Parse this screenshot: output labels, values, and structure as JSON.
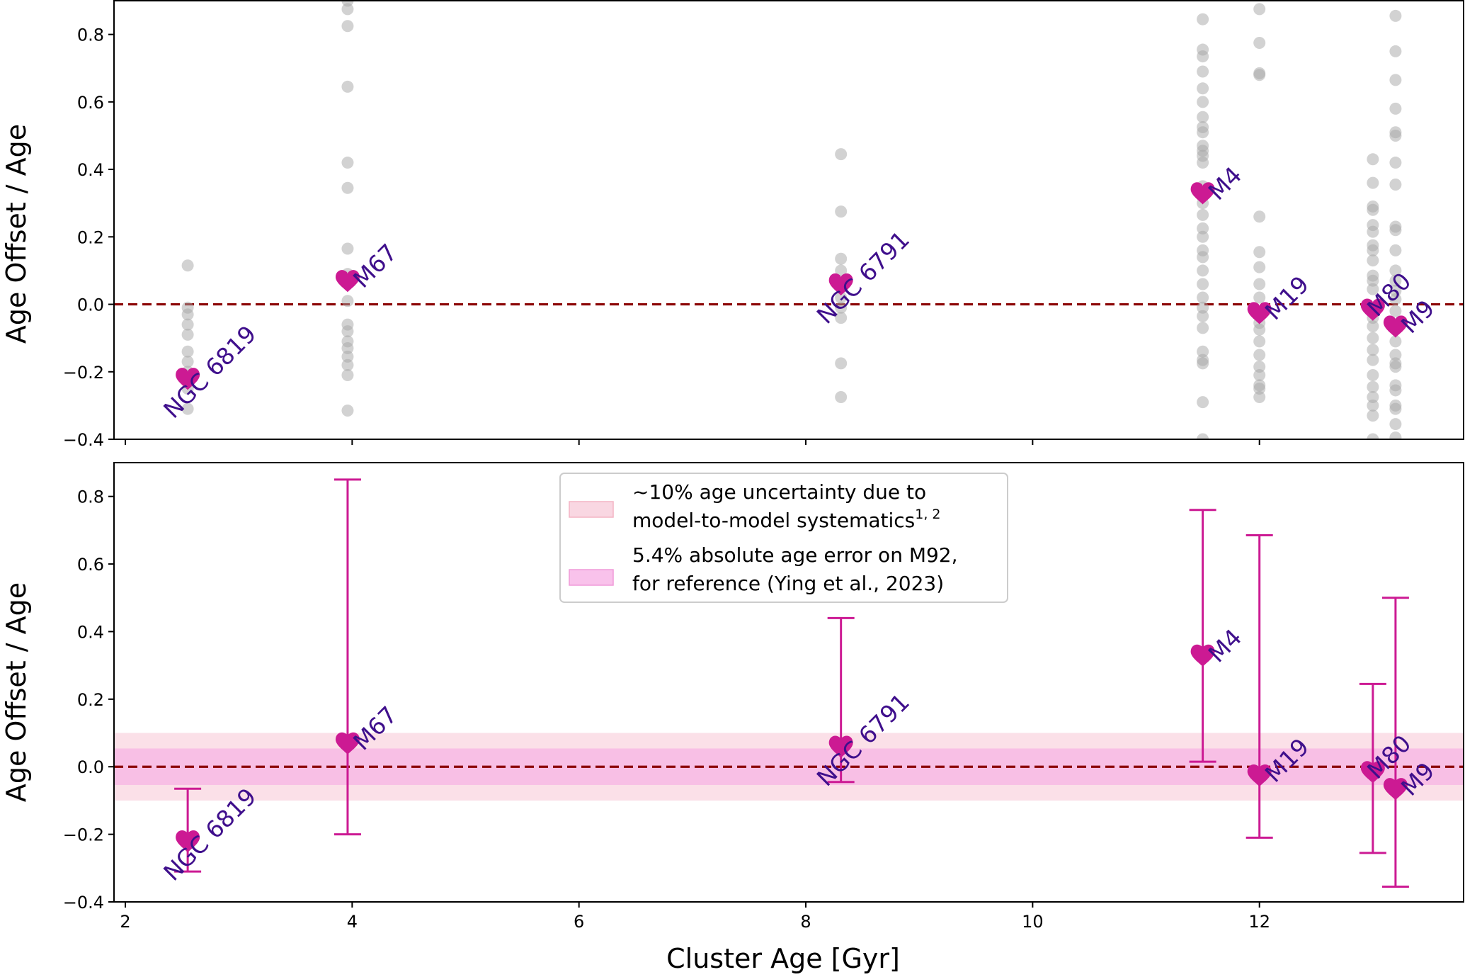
{
  "chart_data": [
    {
      "type": "scatter",
      "panel": "top",
      "xlabel": "",
      "ylabel": "Age Offset / Age",
      "xlim": [
        1.9,
        13.8
      ],
      "ylim": [
        -0.4,
        0.9
      ],
      "xticks": [
        2,
        4,
        6,
        8,
        10,
        12
      ],
      "yticks": [
        "−0.4",
        "−0.2",
        "0.0",
        "0.2",
        "0.4",
        "0.6",
        "0.8"
      ],
      "ytick_values": [
        -0.4,
        -0.2,
        0.0,
        0.2,
        0.4,
        0.6,
        0.8
      ],
      "reference_line_y": 0.0,
      "clusters": [
        {
          "name": "NGC 6819",
          "age": 2.55,
          "offset": -0.22
        },
        {
          "name": "M67",
          "age": 3.96,
          "offset": 0.07
        },
        {
          "name": "NGC 6791",
          "age": 8.31,
          "offset": 0.06
        },
        {
          "name": "M4",
          "age": 11.5,
          "offset": 0.33
        },
        {
          "name": "M19",
          "age": 12.0,
          "offset": -0.025
        },
        {
          "name": "M80",
          "age": 13.0,
          "offset": -0.015
        },
        {
          "name": "M9",
          "age": 13.2,
          "offset": -0.065
        }
      ],
      "individual_points": [
        {
          "age": 2.55,
          "values": [
            0.115,
            -0.01,
            -0.03,
            -0.06,
            -0.09,
            -0.14,
            -0.17,
            -0.2,
            -0.25,
            -0.31
          ]
        },
        {
          "age": 3.96,
          "values": [
            0.9,
            0.875,
            0.825,
            0.645,
            0.42,
            0.345,
            0.165,
            0.09,
            0.01,
            -0.06,
            -0.08,
            -0.11,
            -0.13,
            -0.155,
            -0.18,
            -0.21,
            -0.315
          ]
        },
        {
          "age": 8.31,
          "values": [
            0.445,
            0.275,
            0.135,
            0.1,
            0.05,
            0.02,
            -0.01,
            -0.04,
            -0.175,
            -0.275
          ]
        },
        {
          "age": 11.5,
          "values": [
            0.845,
            0.755,
            0.735,
            0.69,
            0.64,
            0.6,
            0.555,
            0.525,
            0.51,
            0.47,
            0.455,
            0.44,
            0.42,
            0.35,
            0.3,
            0.265,
            0.225,
            0.2,
            0.16,
            0.14,
            0.1,
            0.06,
            0.02,
            -0.01,
            -0.035,
            -0.07,
            -0.14,
            -0.165,
            -0.175,
            -0.29,
            -0.4
          ]
        },
        {
          "age": 12.0,
          "values": [
            0.875,
            0.775,
            0.685,
            0.68,
            0.26,
            0.155,
            0.11,
            0.06,
            0.02,
            -0.055,
            -0.075,
            -0.11,
            -0.15,
            -0.185,
            -0.21,
            -0.24,
            -0.25,
            -0.275
          ]
        },
        {
          "age": 13.0,
          "values": [
            0.43,
            0.36,
            0.29,
            0.28,
            0.235,
            0.215,
            0.175,
            0.16,
            0.13,
            0.085,
            0.07,
            0.045,
            -0.01,
            -0.04,
            -0.065,
            -0.1,
            -0.135,
            -0.165,
            -0.21,
            -0.245,
            -0.275,
            -0.3,
            -0.33,
            -0.4
          ]
        },
        {
          "age": 13.2,
          "values": [
            0.855,
            0.75,
            0.665,
            0.58,
            0.51,
            0.5,
            0.42,
            0.355,
            0.23,
            0.22,
            0.16,
            0.1,
            0.07,
            0.04,
            0.015,
            -0.02,
            -0.06,
            -0.11,
            -0.15,
            -0.175,
            -0.185,
            -0.24,
            -0.255,
            -0.3,
            -0.31,
            -0.355,
            -0.395
          ]
        }
      ]
    },
    {
      "type": "scatter",
      "panel": "bottom",
      "xlabel": "Cluster Age [Gyr]",
      "ylabel": "Age Offset / Age",
      "xlim": [
        1.9,
        13.8
      ],
      "ylim": [
        -0.4,
        0.9
      ],
      "xticks": [
        2,
        4,
        6,
        8,
        10,
        12
      ],
      "yticks": [
        "−0.4",
        "−0.2",
        "0.0",
        "0.2",
        "0.4",
        "0.6",
        "0.8"
      ],
      "ytick_values": [
        -0.4,
        -0.2,
        0.0,
        0.2,
        0.4,
        0.6,
        0.8
      ],
      "reference_line_y": 0.0,
      "bands": [
        {
          "label_line1": "~10% age uncertainty due to",
          "label_line2": "model-to-model systematics",
          "label_sup": "1, 2",
          "ymin": -0.1,
          "ymax": 0.1,
          "color": "#f7c6d6"
        },
        {
          "label_line1": "5.4% absolute age error on M92,",
          "label_line2": "for reference (Ying et al., 2023)",
          "label_sup": "",
          "ymin": -0.054,
          "ymax": 0.054,
          "color": "#f7a8e2"
        }
      ],
      "legend_position": "top-center",
      "clusters": [
        {
          "name": "NGC 6819",
          "age": 2.55,
          "offset": -0.22,
          "err_low": -0.31,
          "err_high": -0.065
        },
        {
          "name": "M67",
          "age": 3.96,
          "offset": 0.07,
          "err_low": -0.2,
          "err_high": 0.85
        },
        {
          "name": "NGC 6791",
          "age": 8.31,
          "offset": 0.06,
          "err_low": -0.045,
          "err_high": 0.44
        },
        {
          "name": "M4",
          "age": 11.5,
          "offset": 0.33,
          "err_low": 0.015,
          "err_high": 0.76
        },
        {
          "name": "M19",
          "age": 12.0,
          "offset": -0.025,
          "err_low": -0.21,
          "err_high": 0.685
        },
        {
          "name": "M80",
          "age": 13.0,
          "offset": -0.015,
          "err_low": -0.255,
          "err_high": 0.245
        },
        {
          "name": "M9",
          "age": 13.2,
          "offset": -0.065,
          "err_low": -0.355,
          "err_high": 0.5
        }
      ]
    }
  ],
  "colors": {
    "marker": "#cc1a93",
    "label": "#3f0f8c",
    "reference_line": "#8b0000",
    "points": "#a6a6a6"
  },
  "marker_icon": "heart-icon"
}
